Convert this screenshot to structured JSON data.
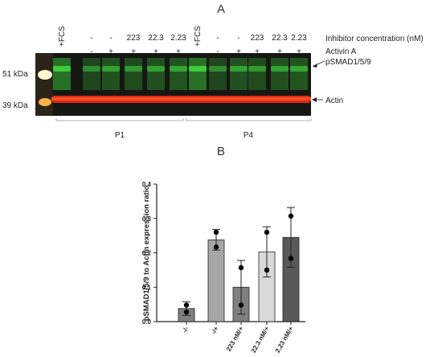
{
  "panel_a": {
    "letter": "A",
    "kda_51": "51 kDa",
    "kda_39": "39 kDa",
    "row_inhibitor": [
      "+FCS",
      "-",
      "-",
      "223",
      "22.3",
      "2.23",
      "+FCS",
      "-",
      "-",
      "223",
      "22.3",
      "2.23"
    ],
    "row_activin": [
      "",
      "-",
      "+",
      "+",
      "+",
      "+",
      "",
      "-",
      "+",
      "+",
      "+",
      "+"
    ],
    "inhibitor_label": "Inhibitor concentration (nM)",
    "activin_label": "Activin A",
    "band_psmad": "pSMAD1/5/9",
    "band_actin": "Actin",
    "group_p1": "P1",
    "group_p4": "P4",
    "colors": {
      "background": "#111111",
      "green": "#3dd13d",
      "red": "#e02a10"
    }
  },
  "panel_b": {
    "letter": "B"
  },
  "chart_data": {
    "type": "bar",
    "categories": [
      "-/-",
      "-/+",
      "223 nM/+",
      "22.3 nM/+",
      "2.23 nM/+"
    ],
    "values": [
      0.038,
      0.238,
      0.1,
      0.203,
      0.245
    ],
    "error": [
      0.02,
      0.03,
      0.078,
      0.073,
      0.087
    ],
    "points": [
      [
        0.048,
        0.028
      ],
      [
        0.26,
        0.217
      ],
      [
        0.157,
        0.048
      ],
      [
        0.26,
        0.15
      ],
      [
        0.307,
        0.184
      ]
    ],
    "bar_colors": [
      "#7f7f7f",
      "#a6a6a6",
      "#7f7f7f",
      "#d9d9d9",
      "#595959"
    ],
    "ylabel": "pSMAD1/5/9 to Actin expression ratio",
    "xlabel": "",
    "ylim": [
      0,
      0.4
    ],
    "yticks": [
      "0.0",
      "0.1",
      "0.2",
      "0.3",
      "0.4"
    ],
    "grid": false
  }
}
